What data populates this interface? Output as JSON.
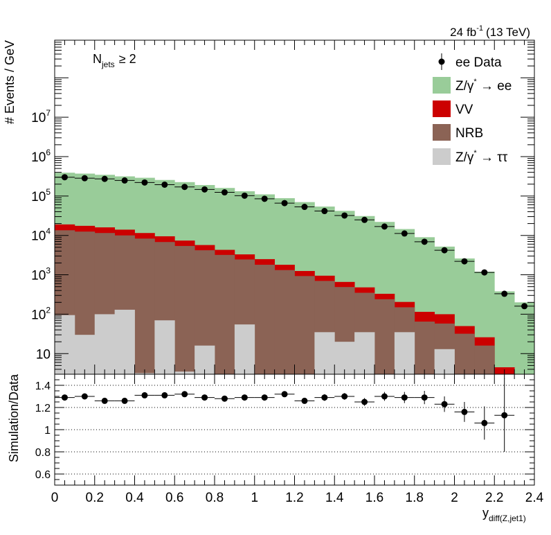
{
  "chart_data": [
    {
      "type": "bar",
      "stacked": true,
      "log_y": true,
      "header": "24 fb-1 (13 TeV)",
      "lumi": "24",
      "lumi_unit": "fb",
      "lumi_exp": "-1",
      "energy": "(13 TeV)",
      "annotation": {
        "main": "N",
        "sub": "jets",
        "rest": "≥ 2"
      },
      "ylabel": "# Events / GeV",
      "xlim": [
        0,
        2.4
      ],
      "ylim": [
        3,
        900000000
      ],
      "bin_edges": [
        0,
        0.1,
        0.2,
        0.3,
        0.4,
        0.5,
        0.6,
        0.7,
        0.8,
        0.9,
        1.0,
        1.1,
        1.2,
        1.3,
        1.4,
        1.5,
        1.6,
        1.7,
        1.8,
        1.9,
        2.0,
        2.1,
        2.2,
        2.3,
        2.4
      ],
      "y_ticks": [
        {
          "value": 10,
          "base": "10",
          "exp": ""
        },
        {
          "value": 100,
          "base": "10",
          "exp": "2"
        },
        {
          "value": 1000,
          "base": "10",
          "exp": "3"
        },
        {
          "value": 10000,
          "base": "10",
          "exp": "4"
        },
        {
          "value": 100000,
          "base": "10",
          "exp": "5"
        },
        {
          "value": 1000000,
          "base": "10",
          "exp": "6"
        },
        {
          "value": 10000000,
          "base": "10",
          "exp": "7"
        }
      ],
      "stack_tops": [
        {
          "name": "Z/γ* → ee",
          "color": "#99cc99",
          "values": [
            390000,
            370000,
            345000,
            315000,
            290000,
            255000,
            225000,
            190000,
            160000,
            132000,
            110000,
            88000,
            70000,
            54000,
            42000,
            31000,
            22000,
            14500,
            9000,
            5200,
            2600,
            1200,
            380,
            200
          ]
        },
        {
          "name": "VV",
          "color": "#cc0000",
          "values": [
            19000,
            17500,
            16000,
            14000,
            11500,
            9500,
            7400,
            5700,
            4300,
            3300,
            2500,
            1800,
            1250,
            950,
            660,
            480,
            330,
            205,
            115,
            100,
            50,
            26,
            4.5,
            3
          ]
        },
        {
          "name": "NRB",
          "color": "#8b6355",
          "values": [
            13500,
            12500,
            11500,
            10000,
            8300,
            6800,
            5400,
            4200,
            3200,
            2450,
            1800,
            1320,
            930,
            700,
            490,
            350,
            240,
            150,
            65,
            58,
            32,
            16,
            3,
            3
          ]
        },
        {
          "name": "Z/γ* → ττ",
          "color": "#cccccc",
          "values": [
            95,
            30,
            100,
            130,
            3.2,
            70,
            3.5,
            16,
            3,
            55,
            3,
            3,
            3,
            35,
            20,
            35,
            3,
            35,
            3,
            13,
            3,
            3,
            3,
            3
          ]
        }
      ],
      "data_series": {
        "name": "ee Data",
        "x": [
          0.05,
          0.15,
          0.25,
          0.35,
          0.45,
          0.55,
          0.65,
          0.75,
          0.85,
          0.95,
          1.05,
          1.15,
          1.25,
          1.35,
          1.45,
          1.55,
          1.65,
          1.75,
          1.85,
          1.95,
          2.05,
          2.15,
          2.25,
          2.35
        ],
        "y": [
          300000,
          283000,
          272000,
          248000,
          220000,
          194000,
          170000,
          147000,
          124000,
          102000,
          85000,
          66000,
          53000,
          41500,
          32000,
          24800,
          16800,
          11200,
          6900,
          4200,
          2200,
          1150,
          330,
          160
        ]
      },
      "legend": {
        "placement": "top-right",
        "entries": [
          {
            "kind": "marker",
            "label": "ee Data",
            "color": "#000000"
          },
          {
            "kind": "box",
            "color": "#99cc99",
            "label_pre": "Z/γ",
            "label_sup": "*",
            "label_post": " → ee"
          },
          {
            "kind": "box",
            "color": "#cc0000",
            "label": "VV"
          },
          {
            "kind": "box",
            "color": "#8b6355",
            "label": "NRB"
          },
          {
            "kind": "box",
            "color": "#cccccc",
            "label_pre": "Z/γ",
            "label_sup": "*",
            "label_post": " → ττ"
          }
        ]
      }
    },
    {
      "type": "scatter",
      "ylabel": "Simulation/Data",
      "xlabel": {
        "main": "y",
        "sub": "diff(Z,jet1)"
      },
      "xlim": [
        0,
        2.4
      ],
      "ylim": [
        0.5,
        1.5
      ],
      "x_ticks": [
        "0",
        "0.2",
        "0.4",
        "0.6",
        "0.8",
        "1",
        "1.2",
        "1.4",
        "1.6",
        "1.8",
        "2",
        "2.2",
        "2.4"
      ],
      "y_ticks": [
        "0.6",
        "0.8",
        "1",
        "1.2",
        "1.4"
      ],
      "grid_lines": [
        0.6,
        0.8,
        1.0,
        1.2,
        1.4
      ],
      "x": [
        0.05,
        0.15,
        0.25,
        0.35,
        0.45,
        0.55,
        0.65,
        0.75,
        0.85,
        0.95,
        1.05,
        1.15,
        1.25,
        1.35,
        1.45,
        1.55,
        1.65,
        1.75,
        1.85,
        1.95,
        2.05,
        2.15,
        2.25
      ],
      "y": [
        1.29,
        1.3,
        1.26,
        1.26,
        1.31,
        1.31,
        1.32,
        1.29,
        1.28,
        1.29,
        1.29,
        1.32,
        1.26,
        1.29,
        1.3,
        1.25,
        1.3,
        1.29,
        1.29,
        1.23,
        1.16,
        1.06,
        1.13
      ],
      "errors": [
        0.01,
        0.01,
        0.01,
        0.01,
        0.01,
        0.01,
        0.01,
        0.015,
        0.015,
        0.015,
        0.015,
        0.02,
        0.02,
        0.03,
        0.03,
        0.035,
        0.04,
        0.05,
        0.06,
        0.07,
        0.09,
        0.15,
        0.33
      ]
    }
  ]
}
